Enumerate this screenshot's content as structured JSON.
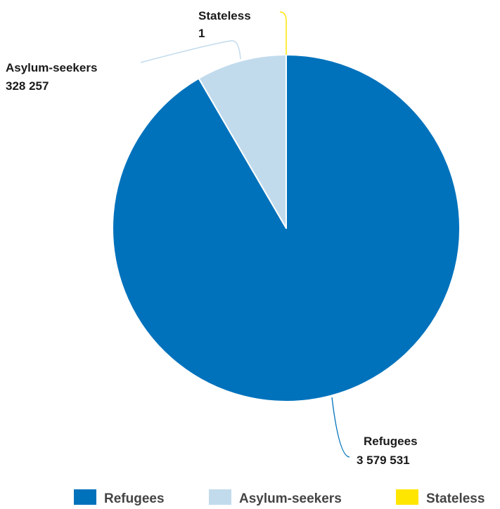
{
  "chart_data": {
    "type": "pie",
    "slices": [
      {
        "name": "Refugees",
        "value": 3579531,
        "value_label": "3 579 531",
        "color": "#0072bc"
      },
      {
        "name": "Asylum-seekers",
        "value": 328257,
        "value_label": "328 257",
        "color": "#c1dbec"
      },
      {
        "name": "Stateless",
        "value": 1,
        "value_label": "1",
        "color": "#ffe600"
      }
    ],
    "legend": {
      "placement": "bottom",
      "entries": [
        "Refugees",
        "Asylum-seekers",
        "Stateless"
      ]
    }
  }
}
